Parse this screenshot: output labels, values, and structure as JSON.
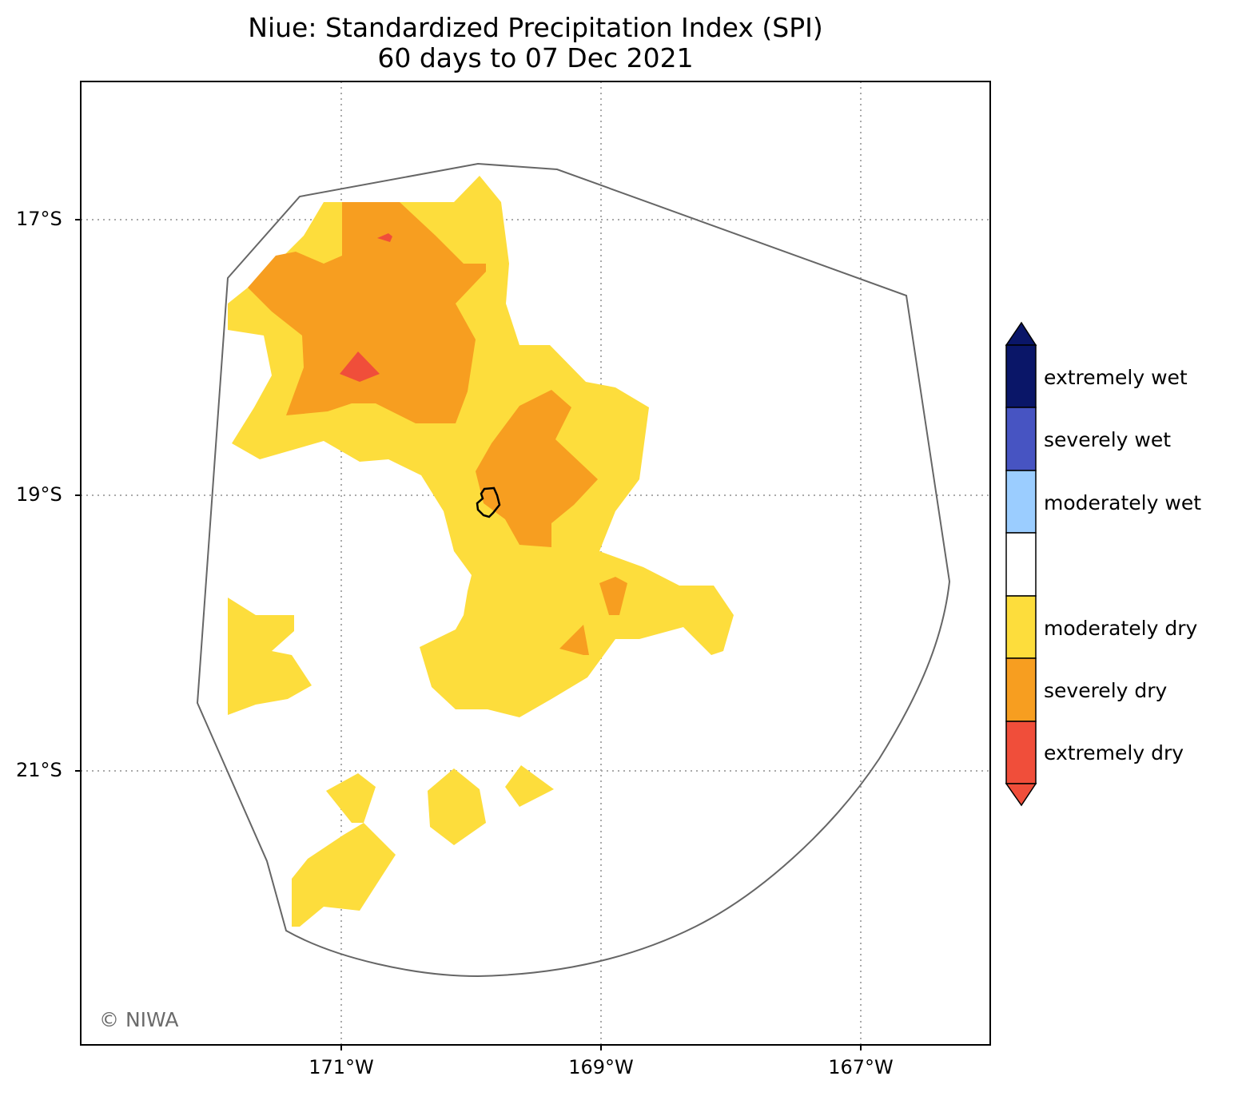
{
  "title": {
    "line1": "Niue: Standardized Precipitation Index (SPI)",
    "line2": "60 days to 07 Dec 2021"
  },
  "axes": {
    "lat_ticks": [
      "17°S",
      "19°S",
      "21°S"
    ],
    "lon_ticks": [
      "171°W",
      "169°W",
      "167°W"
    ],
    "gridlines": true
  },
  "legend": {
    "placement": "right",
    "classes": [
      {
        "label": "extremely wet",
        "color": "#0a1668"
      },
      {
        "label": "severely wet",
        "color": "#4754c2"
      },
      {
        "label": "moderately wet",
        "color": "#9bcdff"
      },
      {
        "label": "",
        "color": "#ffffff"
      },
      {
        "label": "moderately dry",
        "color": "#fddd3c"
      },
      {
        "label": "severely dry",
        "color": "#f79e20"
      },
      {
        "label": "extremely dry",
        "color": "#f04e3a"
      }
    ],
    "extend": "both"
  },
  "colors": {
    "moderately_dry": "#fddd3c",
    "severely_dry": "#f79e20",
    "extremely_dry": "#f04e3a",
    "eez_outline": "#666666",
    "gridline": "#aaaaaa"
  },
  "credit": "© NIWA"
}
